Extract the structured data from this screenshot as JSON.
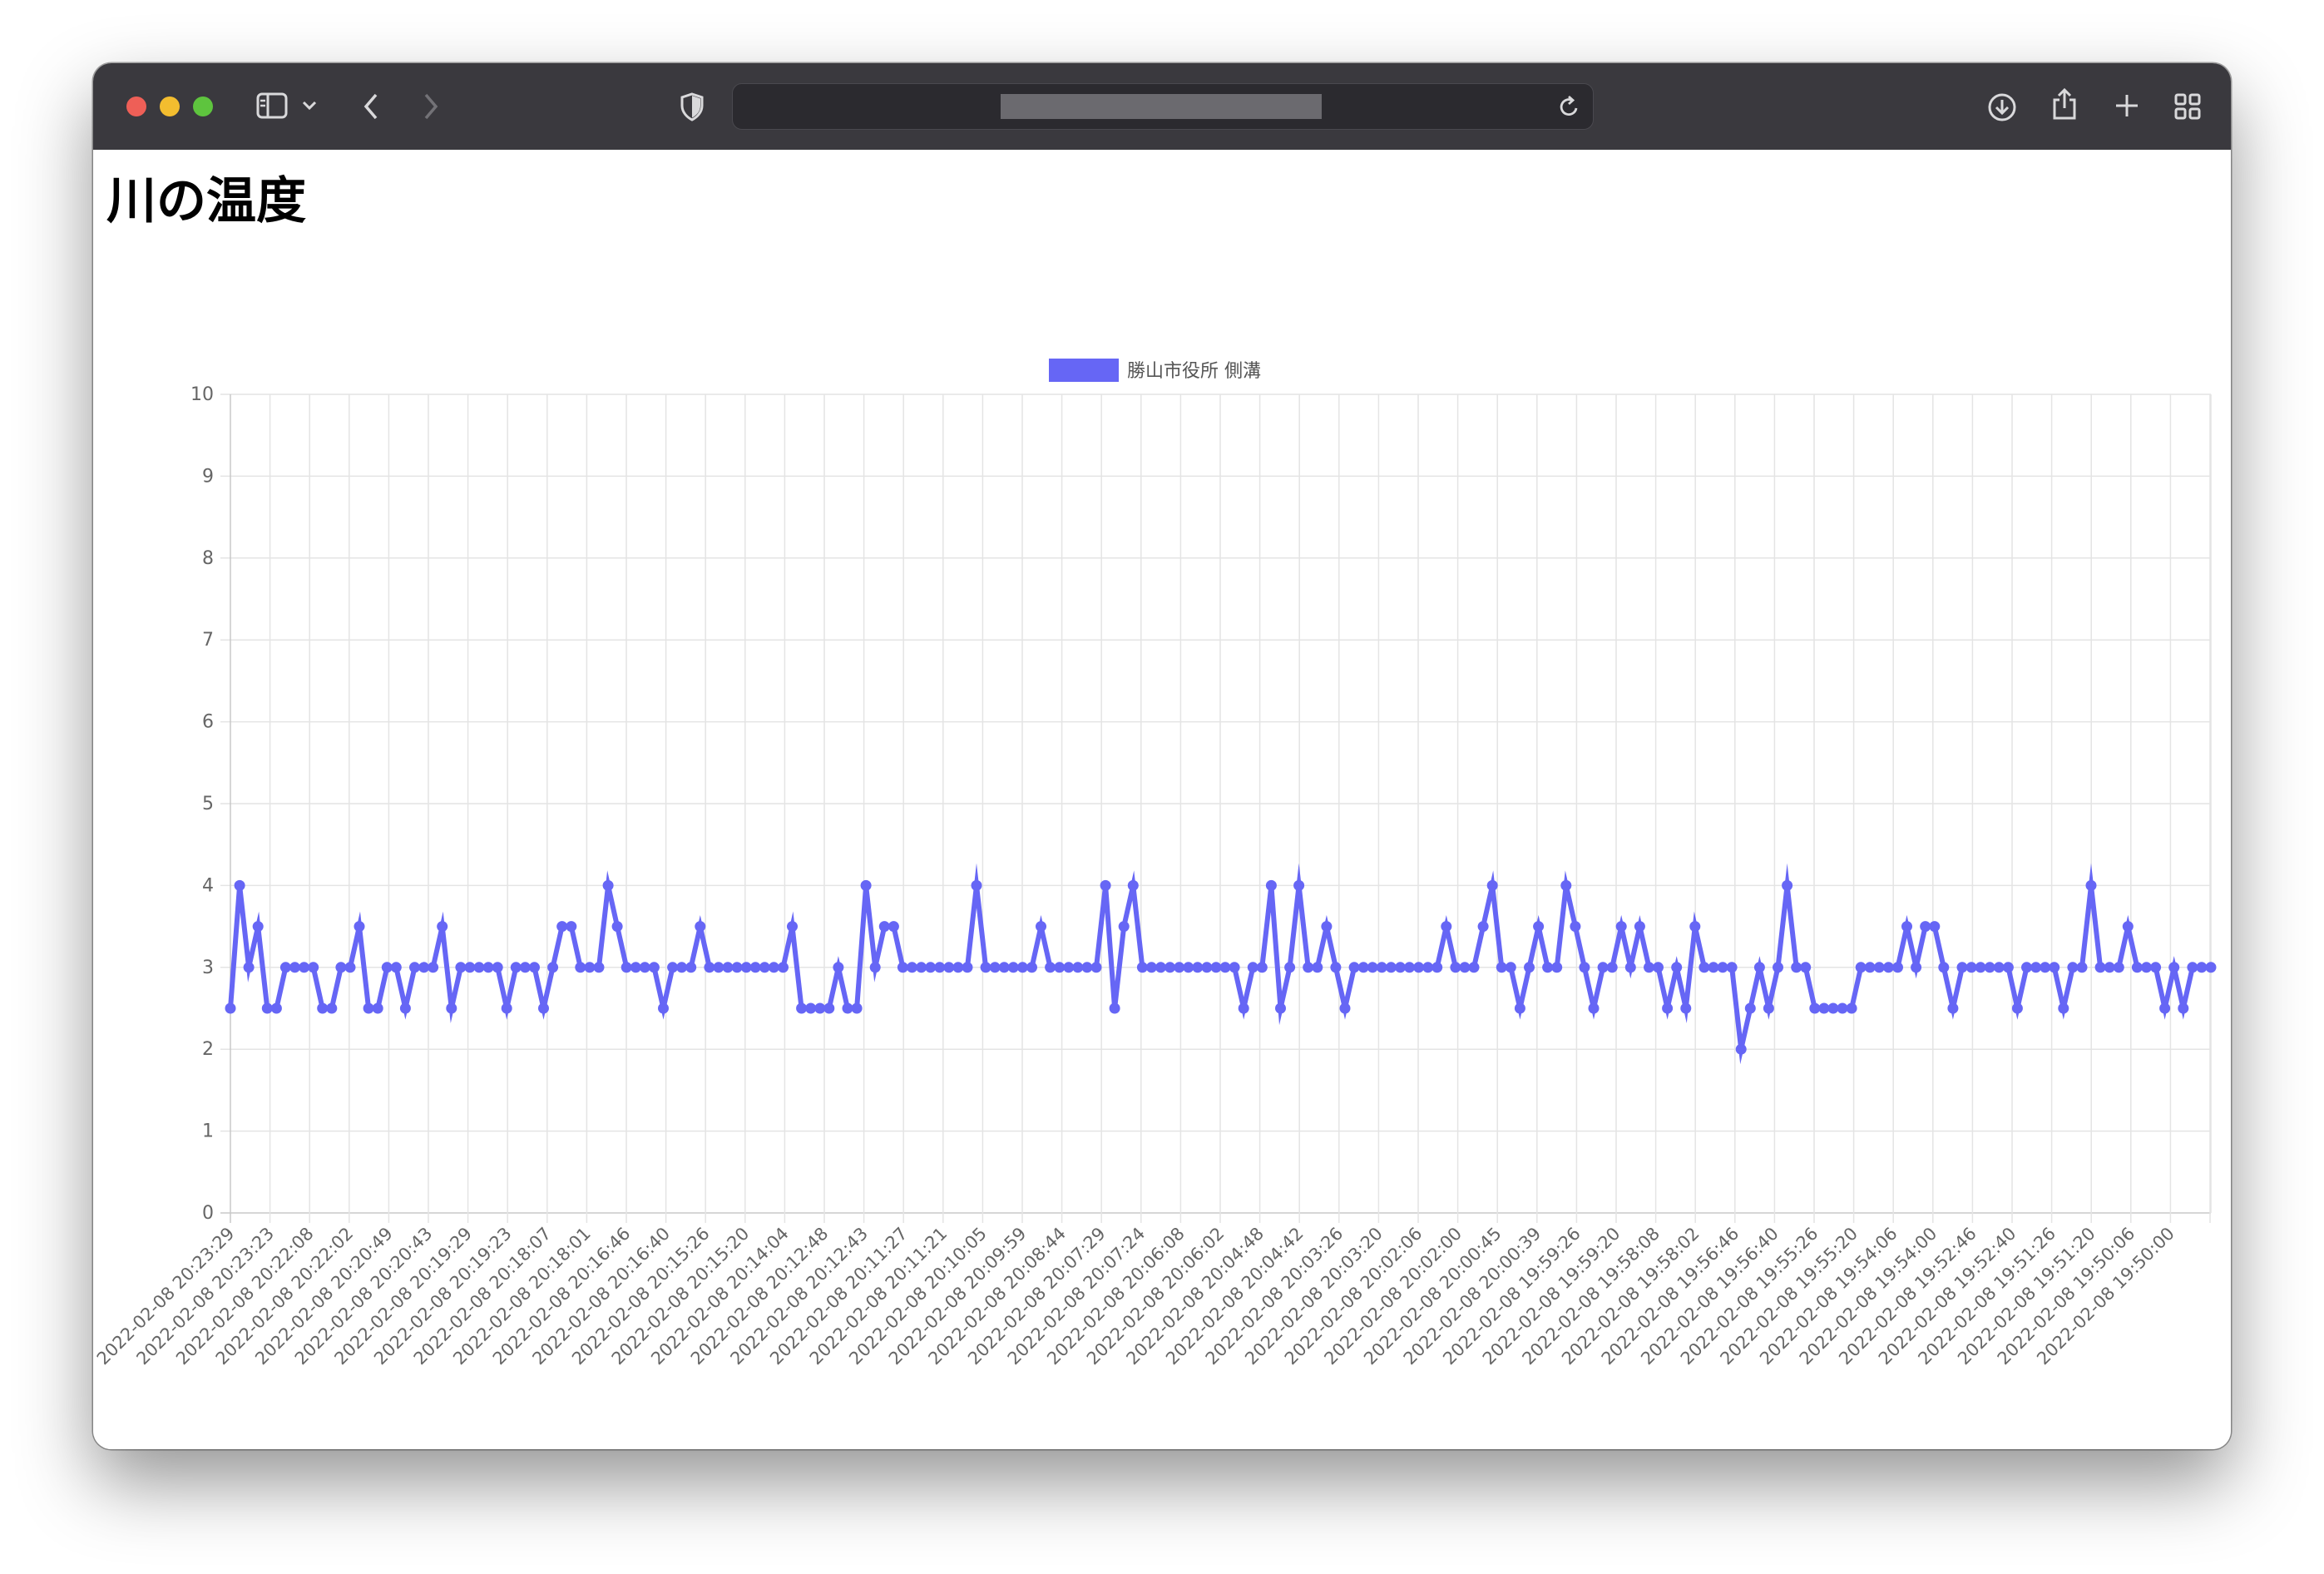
{
  "browser": {
    "address_text": "",
    "icons": [
      "sidebar-icon",
      "chevron-down-icon",
      "back-icon",
      "forward-icon",
      "shield-icon",
      "reload-icon",
      "download-icon",
      "share-icon",
      "plus-icon",
      "tab-overview-icon"
    ]
  },
  "page": {
    "title": "川の温度"
  },
  "chart_data": {
    "type": "line",
    "title": "",
    "xlabel": "",
    "ylabel": "",
    "ylim": [
      0,
      10
    ],
    "yticks": [
      "0",
      "1",
      "2",
      "3",
      "4",
      "5",
      "6",
      "7",
      "8",
      "9",
      "10"
    ],
    "grid": true,
    "legend_position": "top-center",
    "line_color": "#6666f5",
    "x_tick_labels": [
      "2022-02-08 20:23:29",
      "2022-02-08 20:23:23",
      "2022-02-08 20:22:08",
      "2022-02-08 20:22:02",
      "2022-02-08 20:20:49",
      "2022-02-08 20:20:43",
      "2022-02-08 20:19:29",
      "2022-02-08 20:19:23",
      "2022-02-08 20:18:07",
      "2022-02-08 20:18:01",
      "2022-02-08 20:16:46",
      "2022-02-08 20:16:40",
      "2022-02-08 20:15:26",
      "2022-02-08 20:15:20",
      "2022-02-08 20:14:04",
      "2022-02-08 20:12:48",
      "2022-02-08 20:12:43",
      "2022-02-08 20:11:27",
      "2022-02-08 20:11:21",
      "2022-02-08 20:10:05",
      "2022-02-08 20:09:59",
      "2022-02-08 20:08:44",
      "2022-02-08 20:07:29",
      "2022-02-08 20:07:24",
      "2022-02-08 20:06:08",
      "2022-02-08 20:06:02",
      "2022-02-08 20:04:48",
      "2022-02-08 20:04:42",
      "2022-02-08 20:03:26",
      "2022-02-08 20:03:20",
      "2022-02-08 20:02:06",
      "2022-02-08 20:02:00",
      "2022-02-08 20:00:45",
      "2022-02-08 20:00:39",
      "2022-02-08 19:59:26",
      "2022-02-08 19:59:20",
      "2022-02-08 19:58:08",
      "2022-02-08 19:58:02",
      "2022-02-08 19:56:46",
      "2022-02-08 19:56:40",
      "2022-02-08 19:55:26",
      "2022-02-08 19:55:20",
      "2022-02-08 19:54:06",
      "2022-02-08 19:54:00",
      "2022-02-08 19:52:46",
      "2022-02-08 19:52:40",
      "2022-02-08 19:51:26",
      "2022-02-08 19:51:20",
      "2022-02-08 19:50:06",
      "2022-02-08 19:50:00"
    ],
    "series": [
      {
        "name": "勝山市役所 側溝",
        "values": [
          2.5,
          4.0,
          3.0,
          3.5,
          2.5,
          2.5,
          3.0,
          3.0,
          3.0,
          3.0,
          2.5,
          2.5,
          3.0,
          3.0,
          3.5,
          2.5,
          2.5,
          3.0,
          3.0,
          2.5,
          3.0,
          3.0,
          3.0,
          3.5,
          2.5,
          3.0,
          3.0,
          3.0,
          3.0,
          3.0,
          2.5,
          3.0,
          3.0,
          3.0,
          2.5,
          3.0,
          3.5,
          3.5,
          3.0,
          3.0,
          3.0,
          4.0,
          3.5,
          3.0,
          3.0,
          3.0,
          3.0,
          2.5,
          3.0,
          3.0,
          3.0,
          3.5,
          3.0,
          3.0,
          3.0,
          3.0,
          3.0,
          3.0,
          3.0,
          3.0,
          3.0,
          3.5,
          2.5,
          2.5,
          2.5,
          2.5,
          3.0,
          2.5,
          2.5,
          4.0,
          3.0,
          3.5,
          3.5,
          3.0,
          3.0,
          3.0,
          3.0,
          3.0,
          3.0,
          3.0,
          3.0,
          4.0,
          3.0,
          3.0,
          3.0,
          3.0,
          3.0,
          3.0,
          3.5,
          3.0,
          3.0,
          3.0,
          3.0,
          3.0,
          3.0,
          4.0,
          2.5,
          3.5,
          4.0,
          3.0,
          3.0,
          3.0,
          3.0,
          3.0,
          3.0,
          3.0,
          3.0,
          3.0,
          3.0,
          3.0,
          2.5,
          3.0,
          3.0,
          4.0,
          2.5,
          3.0,
          4.0,
          3.0,
          3.0,
          3.5,
          3.0,
          2.5,
          3.0,
          3.0,
          3.0,
          3.0,
          3.0,
          3.0,
          3.0,
          3.0,
          3.0,
          3.0,
          3.5,
          3.0,
          3.0,
          3.0,
          3.5,
          4.0,
          3.0,
          3.0,
          2.5,
          3.0,
          3.5,
          3.0,
          3.0,
          4.0,
          3.5,
          3.0,
          2.5,
          3.0,
          3.0,
          3.5,
          3.0,
          3.5,
          3.0,
          3.0,
          2.5,
          3.0,
          2.5,
          3.5,
          3.0,
          3.0,
          3.0,
          3.0,
          2.0,
          2.5,
          3.0,
          2.5,
          3.0,
          4.0,
          3.0,
          3.0,
          2.5,
          2.5,
          2.5,
          2.5,
          2.5,
          3.0,
          3.0,
          3.0,
          3.0,
          3.0,
          3.5,
          3.0,
          3.5,
          3.5,
          3.0,
          2.5,
          3.0,
          3.0,
          3.0,
          3.0,
          3.0,
          3.0,
          2.5,
          3.0,
          3.0,
          3.0,
          3.0,
          2.5,
          3.0,
          3.0,
          4.0,
          3.0,
          3.0,
          3.0,
          3.5,
          3.0,
          3.0,
          3.0,
          2.5,
          3.0,
          2.5,
          3.0,
          3.0,
          3.0
        ]
      }
    ]
  }
}
